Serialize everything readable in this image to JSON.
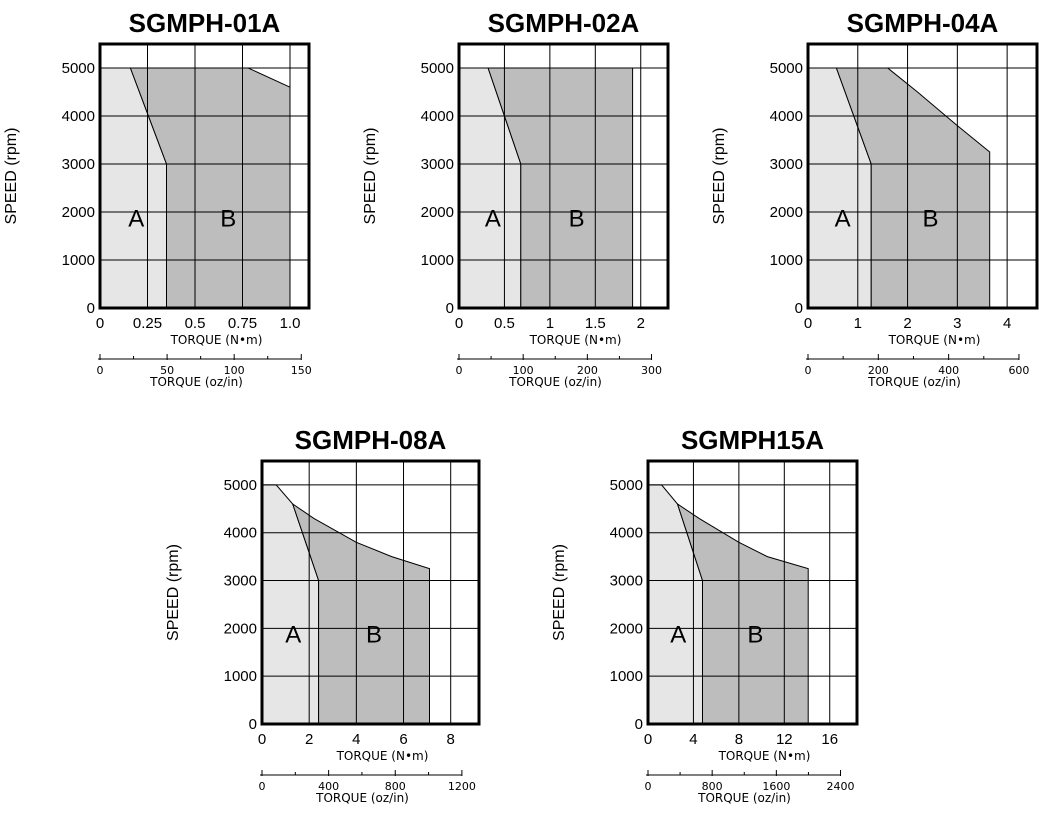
{
  "chart_data": [
    {
      "type": "area",
      "title": "SGMPH-01A",
      "ylabel": "SPEED (rpm)",
      "xlabel": "TORQUE (N•m)",
      "xlabel2": "TORQUE (oz/in)",
      "xlim": [
        0,
        1.1
      ],
      "ylim": [
        0,
        5500
      ],
      "xticks": [
        0,
        0.25,
        0.5,
        0.75,
        1.0
      ],
      "xtick_labels": [
        "0",
        "0.25",
        "0.5",
        "0.75",
        "1.0"
      ],
      "xgrid": [
        0.25,
        0.5,
        0.75,
        1.0
      ],
      "yticks": [
        0,
        1000,
        2000,
        3000,
        4000,
        5000
      ],
      "ytick_labels": [
        "0",
        "1000",
        "2000",
        "3000",
        "4000",
        "5000"
      ],
      "x2_scale": 141.6,
      "x2_ticks": [
        0,
        50,
        100,
        150
      ],
      "x2_tick_labels": [
        "0",
        "50",
        "100",
        "150"
      ],
      "x2_minor": [
        25,
        75,
        125
      ],
      "region_a": [
        [
          0,
          0
        ],
        [
          0,
          5000
        ],
        [
          0.16,
          5000
        ],
        [
          0.35,
          3000
        ],
        [
          0.35,
          0
        ]
      ],
      "region_b": [
        [
          0.35,
          0
        ],
        [
          0.35,
          3000
        ],
        [
          0.16,
          5000
        ],
        [
          0.78,
          5000
        ],
        [
          1.0,
          4600
        ],
        [
          1.0,
          0
        ]
      ],
      "region_a_label": "A",
      "region_b_label": "B"
    },
    {
      "type": "area",
      "title": "SGMPH-02A",
      "ylabel": "SPEED (rpm)",
      "xlabel": "TORQUE (N•m)",
      "xlabel2": "TORQUE (oz/in)",
      "xlim": [
        0,
        2.3
      ],
      "ylim": [
        0,
        5500
      ],
      "xticks": [
        0,
        0.5,
        1,
        1.5,
        2
      ],
      "xtick_labels": [
        "0",
        "0.5",
        "1",
        "1.5",
        "2"
      ],
      "xgrid": [
        0.5,
        1,
        1.5,
        2
      ],
      "yticks": [
        0,
        1000,
        2000,
        3000,
        4000,
        5000
      ],
      "ytick_labels": [
        "0",
        "1000",
        "2000",
        "3000",
        "4000",
        "5000"
      ],
      "x2_scale": 141.6,
      "x2_ticks": [
        0,
        100,
        200,
        300
      ],
      "x2_tick_labels": [
        "0",
        "100",
        "200",
        "300"
      ],
      "x2_minor": [
        50,
        150,
        250
      ],
      "region_a": [
        [
          0,
          0
        ],
        [
          0,
          5000
        ],
        [
          0.32,
          5000
        ],
        [
          0.68,
          3000
        ],
        [
          0.68,
          0
        ]
      ],
      "region_b": [
        [
          0.68,
          0
        ],
        [
          0.68,
          3000
        ],
        [
          0.32,
          5000
        ],
        [
          1.91,
          5000
        ],
        [
          1.91,
          0
        ]
      ],
      "region_a_label": "A",
      "region_b_label": "B"
    },
    {
      "type": "area",
      "title": "SGMPH-04A",
      "ylabel": "SPEED (rpm)",
      "xlabel": "TORQUE (N•m)",
      "xlabel2": "TORQUE (oz/in)",
      "xlim": [
        0,
        4.6
      ],
      "ylim": [
        0,
        5500
      ],
      "xticks": [
        0,
        1,
        2,
        3,
        4
      ],
      "xtick_labels": [
        "0",
        "1",
        "2",
        "3",
        "4"
      ],
      "xgrid": [
        1,
        2,
        3,
        4
      ],
      "yticks": [
        0,
        1000,
        2000,
        3000,
        4000,
        5000
      ],
      "ytick_labels": [
        "0",
        "1000",
        "2000",
        "3000",
        "4000",
        "5000"
      ],
      "x2_scale": 141.6,
      "x2_ticks": [
        0,
        200,
        400,
        600
      ],
      "x2_tick_labels": [
        "0",
        "200",
        "400",
        "600"
      ],
      "x2_minor": [
        100,
        300,
        500
      ],
      "region_a": [
        [
          0,
          0
        ],
        [
          0,
          5000
        ],
        [
          0.57,
          5000
        ],
        [
          1.27,
          3000
        ],
        [
          1.27,
          0
        ]
      ],
      "region_b": [
        [
          1.27,
          0
        ],
        [
          1.27,
          3000
        ],
        [
          0.57,
          5000
        ],
        [
          1.6,
          5000
        ],
        [
          2.2,
          4500
        ],
        [
          3.0,
          3800
        ],
        [
          3.65,
          3250
        ],
        [
          3.65,
          0
        ]
      ],
      "region_a_label": "A",
      "region_b_label": "B"
    },
    {
      "type": "area",
      "title": "SGMPH-08A",
      "ylabel": "SPEED (rpm)",
      "xlabel": "TORQUE (N•m)",
      "xlabel2": "TORQUE (oz/in)",
      "xlim": [
        0,
        9.2
      ],
      "ylim": [
        0,
        5500
      ],
      "xticks": [
        0,
        2,
        4,
        6,
        8
      ],
      "xtick_labels": [
        "0",
        "2",
        "4",
        "6",
        "8"
      ],
      "xgrid": [
        2,
        4,
        6,
        8
      ],
      "yticks": [
        0,
        1000,
        2000,
        3000,
        4000,
        5000
      ],
      "ytick_labels": [
        "0",
        "1000",
        "2000",
        "3000",
        "4000",
        "5000"
      ],
      "x2_scale": 141.6,
      "x2_ticks": [
        0,
        400,
        800,
        1200
      ],
      "x2_tick_labels": [
        "0",
        "400",
        "800",
        "1200"
      ],
      "x2_minor": [
        200,
        600,
        1000
      ],
      "region_a": [
        [
          0,
          0
        ],
        [
          0,
          5000
        ],
        [
          0.6,
          5000
        ],
        [
          1.3,
          4600
        ],
        [
          2.4,
          3000
        ],
        [
          2.4,
          0
        ]
      ],
      "region_b": [
        [
          2.4,
          0
        ],
        [
          2.4,
          3000
        ],
        [
          1.3,
          4600
        ],
        [
          2.2,
          4300
        ],
        [
          4.0,
          3800
        ],
        [
          5.5,
          3500
        ],
        [
          7.1,
          3250
        ],
        [
          7.1,
          0
        ]
      ],
      "region_a_label": "A",
      "region_b_label": "B"
    },
    {
      "type": "area",
      "title": "SGMPH15A",
      "ylabel": "SPEED (rpm)",
      "xlabel": "TORQUE (N•m)",
      "xlabel2": "TORQUE (oz/in)",
      "xlim": [
        0,
        18.4
      ],
      "ylim": [
        0,
        5500
      ],
      "xticks": [
        0,
        4,
        8,
        12,
        16
      ],
      "xtick_labels": [
        "0",
        "4",
        "8",
        "12",
        "16"
      ],
      "xgrid": [
        4,
        8,
        12,
        16
      ],
      "yticks": [
        0,
        1000,
        2000,
        3000,
        4000,
        5000
      ],
      "ytick_labels": [
        "0",
        "1000",
        "2000",
        "3000",
        "4000",
        "5000"
      ],
      "x2_scale": 141.6,
      "x2_ticks": [
        0,
        800,
        1600,
        2400
      ],
      "x2_tick_labels": [
        "0",
        "800",
        "1600",
        "2400"
      ],
      "x2_minor": [
        400,
        1200,
        2000
      ],
      "region_a": [
        [
          0,
          0
        ],
        [
          0,
          5000
        ],
        [
          1.2,
          5000
        ],
        [
          2.6,
          4600
        ],
        [
          4.8,
          3000
        ],
        [
          4.8,
          0
        ]
      ],
      "region_b": [
        [
          4.8,
          0
        ],
        [
          4.8,
          3000
        ],
        [
          2.6,
          4600
        ],
        [
          4.5,
          4300
        ],
        [
          8.0,
          3800
        ],
        [
          10.5,
          3500
        ],
        [
          14.1,
          3250
        ],
        [
          14.1,
          0
        ]
      ],
      "region_a_label": "A",
      "region_b_label": "B"
    }
  ],
  "colors": {
    "region_a_fill": "#e6e6e6",
    "region_b_fill": "#bdbdbd",
    "grid": "#000000",
    "frame": "#000000"
  }
}
